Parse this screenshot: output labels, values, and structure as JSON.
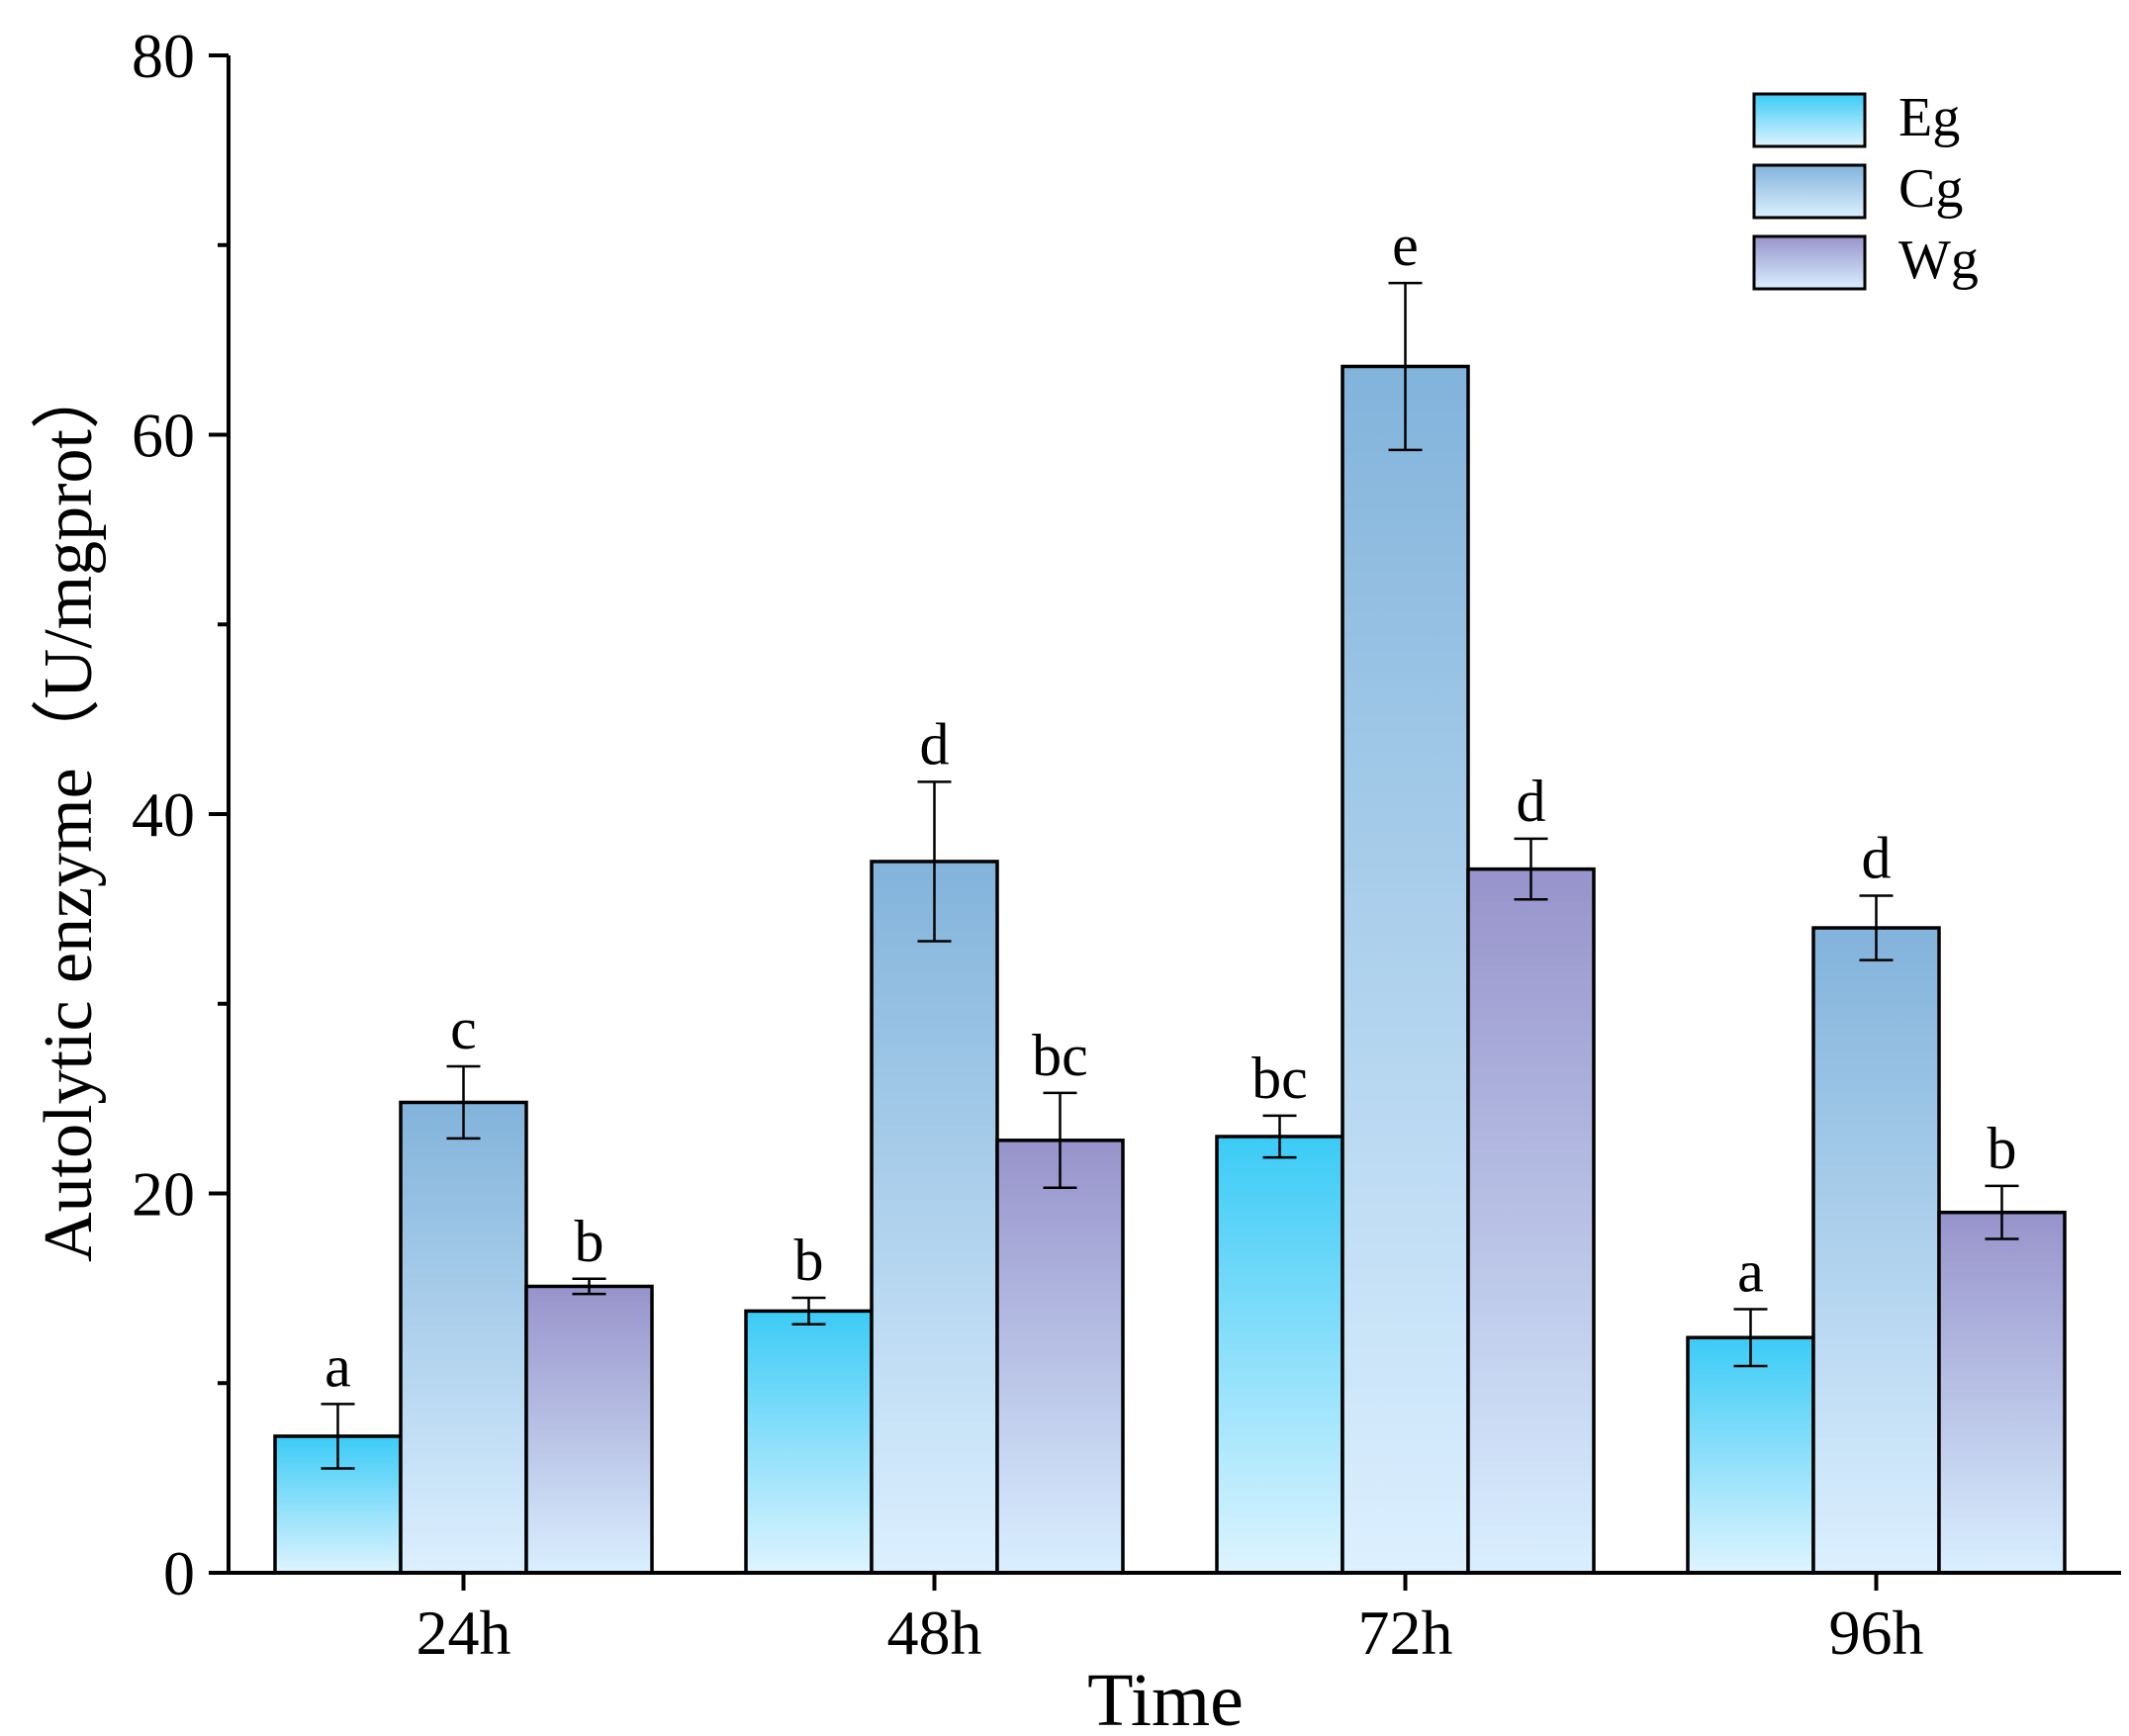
{
  "chart_data": {
    "type": "bar",
    "xlabel": "Time",
    "ylabel": "Autolytic enzyme（U/mgprot）",
    "ylim": [
      0,
      80
    ],
    "yticks": [
      0,
      20,
      40,
      60,
      80
    ],
    "grid": false,
    "legend_position": "top-right",
    "categories": [
      "24h",
      "48h",
      "72h",
      "96h"
    ],
    "series": [
      {
        "name": "Eg",
        "colors": {
          "top": "#3bcbf6",
          "bottom": "#def4ff"
        },
        "values": [
          7.2,
          13.8,
          23.0,
          12.4
        ],
        "errors": [
          1.7,
          0.7,
          1.1,
          1.5
        ],
        "significance": [
          "a",
          "b",
          "bc",
          "a"
        ]
      },
      {
        "name": "Cg",
        "colors": {
          "top": "#82b3db",
          "bottom": "#dcf0ff"
        },
        "values": [
          24.8,
          37.5,
          63.6,
          34.0
        ],
        "errors": [
          1.9,
          4.2,
          4.4,
          1.7
        ],
        "significance": [
          "c",
          "d",
          "e",
          "d"
        ]
      },
      {
        "name": "Wg",
        "colors": {
          "top": "#9793cb",
          "bottom": "#d9efff"
        },
        "values": [
          15.1,
          22.8,
          37.1,
          19.0
        ],
        "errors": [
          0.4,
          2.5,
          1.6,
          1.4
        ],
        "significance": [
          "b",
          "bc",
          "d",
          "b"
        ]
      }
    ]
  }
}
